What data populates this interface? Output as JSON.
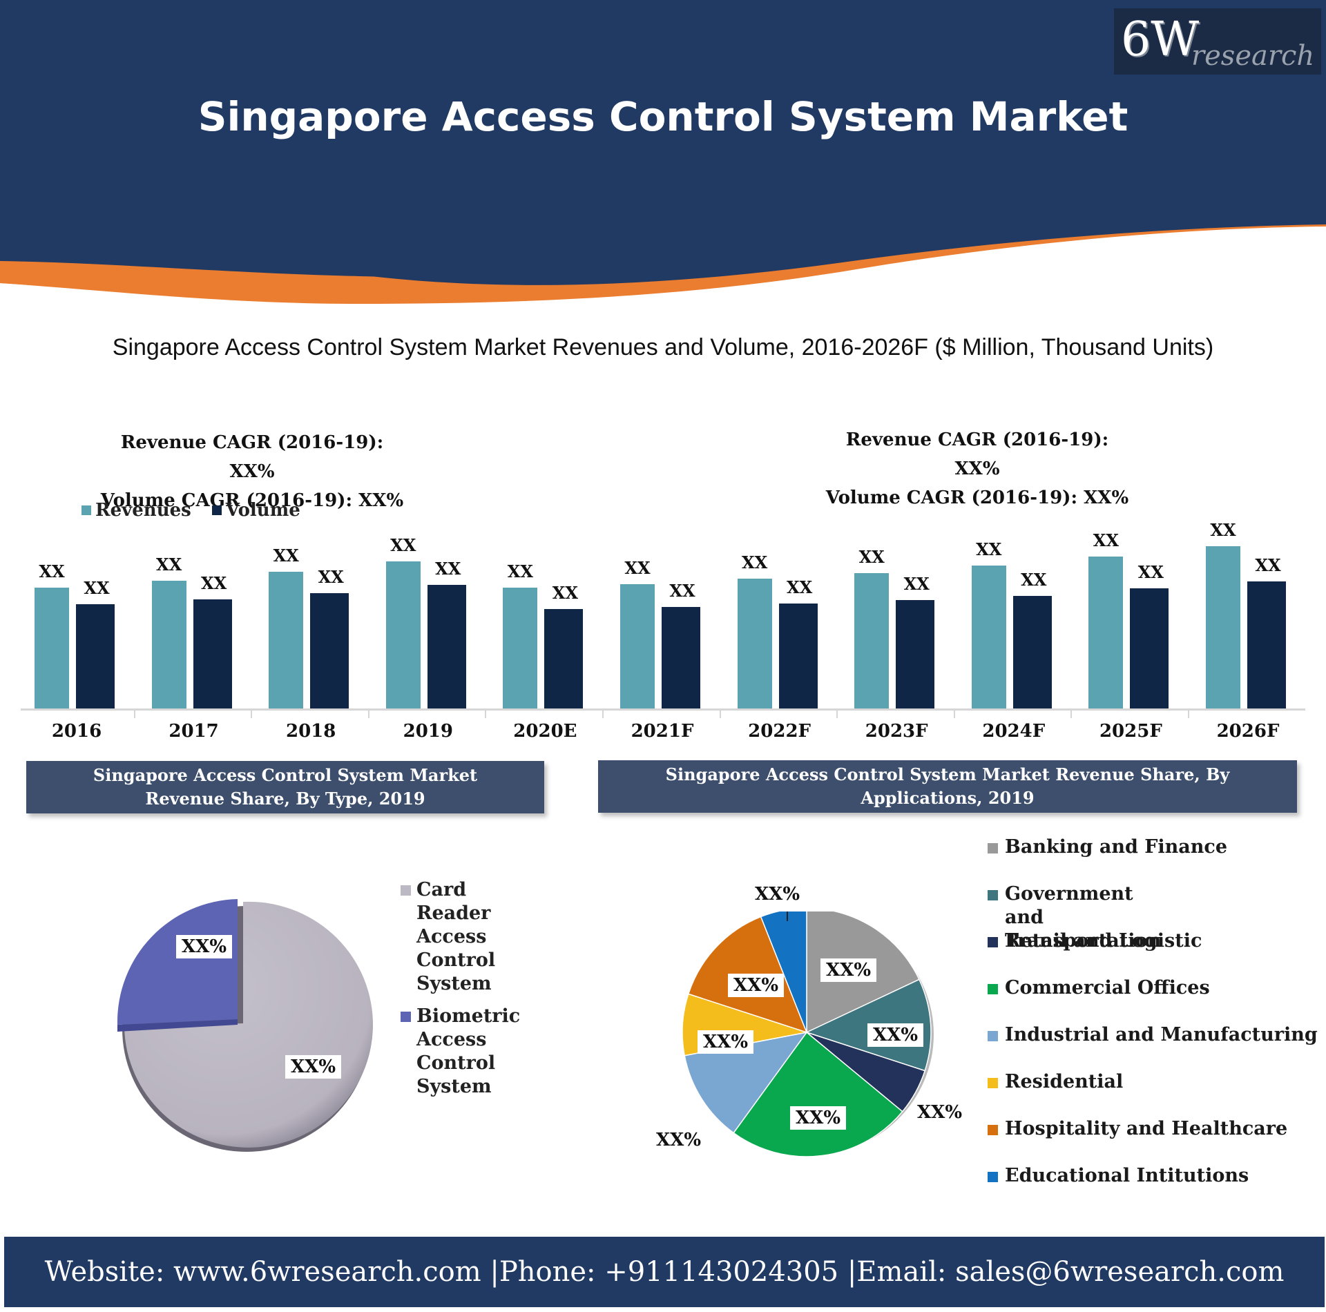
{
  "header": {
    "title": "Singapore Access Control System Market",
    "logo_primary": "6W",
    "logo_secondary": "research",
    "colors": {
      "navy": "#213a63",
      "orange": "#eb7d30",
      "logo_bg": "#1b2a45"
    }
  },
  "main_chart": {
    "subtitle": "Singapore Access Control System Market Revenues and Volume, 2016-2026F ($ Million, Thousand Units)",
    "cagr_left": {
      "revenue": "Revenue CAGR (2016-19): XX%",
      "volume": "Volume CAGR (2016-19): XX%"
    },
    "cagr_right": {
      "revenue": "Revenue CAGR (2016-19): XX%",
      "volume": "Volume CAGR (2016-19): XX%"
    },
    "legend": [
      {
        "label": "Revenues",
        "color": "#5ba3b0"
      },
      {
        "label": "Volume",
        "color": "#0f2646"
      }
    ],
    "groups": [
      {
        "year": "2016",
        "rev_label": "XX",
        "vol_label": "XX",
        "rev_h": 175,
        "vol_h": 151
      },
      {
        "year": "2017",
        "rev_label": "XX",
        "vol_label": "XX",
        "rev_h": 185,
        "vol_h": 158
      },
      {
        "year": "2018",
        "rev_label": "XX",
        "vol_label": "XX",
        "rev_h": 198,
        "vol_h": 167
      },
      {
        "year": "2019",
        "rev_label": "XX",
        "vol_label": "XX",
        "rev_h": 213,
        "vol_h": 179
      },
      {
        "year": "2020E",
        "rev_label": "XX",
        "vol_label": "XX",
        "rev_h": 175,
        "vol_h": 144
      },
      {
        "year": "2021F",
        "rev_label": "XX",
        "vol_label": "XX",
        "rev_h": 180,
        "vol_h": 147
      },
      {
        "year": "2022F",
        "rev_label": "XX",
        "vol_label": "XX",
        "rev_h": 188,
        "vol_h": 152
      },
      {
        "year": "2023F",
        "rev_label": "XX",
        "vol_label": "XX",
        "rev_h": 196,
        "vol_h": 157
      },
      {
        "year": "2024F",
        "rev_label": "XX",
        "vol_label": "XX",
        "rev_h": 207,
        "vol_h": 163
      },
      {
        "year": "2025F",
        "rev_label": "XX",
        "vol_label": "XX",
        "rev_h": 220,
        "vol_h": 174
      },
      {
        "year": "2026F",
        "rev_label": "XX",
        "vol_label": "XX",
        "rev_h": 235,
        "vol_h": 184
      }
    ]
  },
  "type_share": {
    "banner": "Singapore Access Control System Market Revenue Share, By Type, 2019",
    "slices": [
      {
        "label": "Card Reader Access Control System",
        "value_label": "XX%",
        "color": "#bdb9c4"
      },
      {
        "label": "Biometric Access Control System",
        "value_label": "XX%",
        "color": "#5d64b4"
      }
    ]
  },
  "application_share": {
    "banner": "Singapore Access Control System Market Revenue Share, By Applications, 2019",
    "slices": [
      {
        "label": "Banking and Finance",
        "value_label": "XX%",
        "color": "#999999"
      },
      {
        "label": "Government and Transportation",
        "value_label": "XX%",
        "color": "#3e7680"
      },
      {
        "label": "Retail and Logistic",
        "value_label": "XX%",
        "color": "#23325a"
      },
      {
        "label": "Commercial Offices",
        "value_label": "XX%",
        "color": "#09a84e"
      },
      {
        "label": "Industrial and Manufacturing",
        "value_label": "XX%",
        "color": "#7aa6d2"
      },
      {
        "label": "Residential",
        "value_label": "XX%",
        "color": "#f5bd1c"
      },
      {
        "label": "Hospitality and Healthcare",
        "value_label": "XX%",
        "color": "#d6700f"
      },
      {
        "label": "Educational Intitutions",
        "value_label": "XX%",
        "color": "#1373c2"
      }
    ]
  },
  "footer": {
    "text": "Website: www.6wresearch.com |Phone: +911143024305 |Email: sales@6wresearch.com"
  },
  "chart_data": [
    {
      "type": "bar",
      "title": "Singapore Access Control System Market Revenues and Volume, 2016-2026F ($ Million, Thousand Units)",
      "categories": [
        "2016",
        "2017",
        "2018",
        "2019",
        "2020E",
        "2021F",
        "2022F",
        "2023F",
        "2024F",
        "2025F",
        "2026F"
      ],
      "series": [
        {
          "name": "Revenues",
          "values": [
            "XX",
            "XX",
            "XX",
            "XX",
            "XX",
            "XX",
            "XX",
            "XX",
            "XX",
            "XX",
            "XX"
          ],
          "relative_heights": [
            175,
            185,
            198,
            213,
            175,
            180,
            188,
            196,
            207,
            220,
            235
          ]
        },
        {
          "name": "Volume",
          "values": [
            "XX",
            "XX",
            "XX",
            "XX",
            "XX",
            "XX",
            "XX",
            "XX",
            "XX",
            "XX",
            "XX"
          ],
          "relative_heights": [
            151,
            158,
            167,
            179,
            144,
            147,
            152,
            157,
            163,
            174,
            184
          ]
        }
      ],
      "annotations": [
        "Revenue CAGR (2016-19): XX%",
        "Volume CAGR (2016-19): XX%"
      ],
      "xlabel": "",
      "ylabel": "",
      "grid": false,
      "legend_position": "top-left"
    },
    {
      "type": "pie",
      "title": "Singapore Access Control System Market Revenue Share, By Type, 2019",
      "categories": [
        "Card Reader Access Control System",
        "Biometric Access Control System"
      ],
      "values": [
        "XX%",
        "XX%"
      ],
      "approx_share": [
        75,
        25
      ],
      "legend_position": "right"
    },
    {
      "type": "pie",
      "title": "Singapore Access Control System Market Revenue Share, By Applications, 2019",
      "categories": [
        "Banking and Finance",
        "Government and Transportation",
        "Retail and Logistic",
        "Commercial Offices",
        "Industrial and Manufacturing",
        "Residential",
        "Hospitality and Healthcare",
        "Educational Intitutions"
      ],
      "values": [
        "XX%",
        "XX%",
        "XX%",
        "XX%",
        "XX%",
        "XX%",
        "XX%",
        "XX%"
      ],
      "approx_share": [
        18,
        12,
        6,
        24,
        12,
        8,
        14,
        6
      ],
      "legend_position": "right"
    }
  ]
}
